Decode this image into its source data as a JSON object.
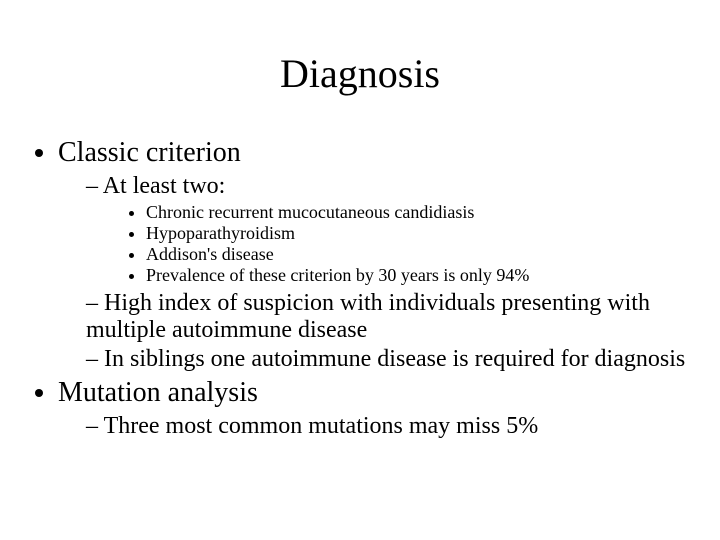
{
  "background_color": "#ffffff",
  "text_color": "#000000",
  "font_family": "Times New Roman",
  "title": "Diagnosis",
  "title_fontsize": 40,
  "bullets": {
    "level1_fontsize": 28,
    "level2_fontsize": 24,
    "level3_fontsize": 18,
    "items": [
      {
        "text": "Classic criterion",
        "children": [
          {
            "text": "At least two:",
            "children": [
              {
                "text": "Chronic recurrent mucocutaneous candidiasis"
              },
              {
                "text": "Hypoparathyroidism"
              },
              {
                "text": "Addison's disease"
              },
              {
                "text": "Prevalence of these criterion by 30 years is only 94%"
              }
            ]
          },
          {
            "text": "High index of suspicion with individuals presenting with multiple autoimmune disease"
          },
          {
            "text": "In siblings one autoimmune disease is required for diagnosis"
          }
        ]
      },
      {
        "text": "Mutation analysis",
        "children": [
          {
            "text": "Three most common mutations may miss 5%"
          }
        ]
      }
    ]
  }
}
